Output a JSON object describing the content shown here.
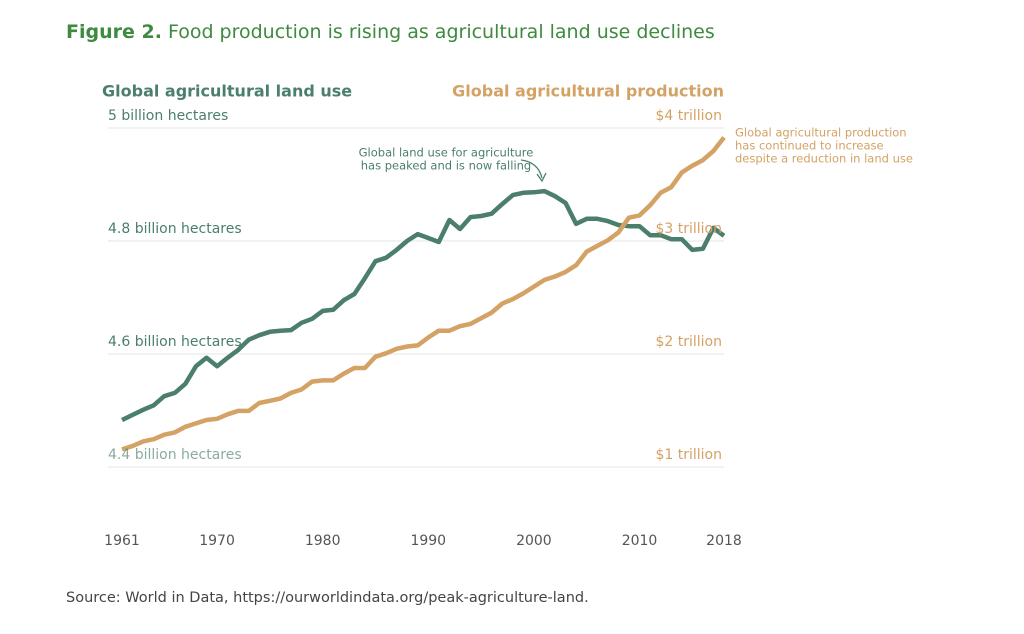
{
  "chart_data": {
    "type": "line",
    "figure_label": "Figure 2.",
    "title": "Food production is rising as agricultural land use declines",
    "y_axis_title": "Global agricultural land use",
    "y2_axis_title": "Global agricultural production",
    "annotations": [
      {
        "lines": [
          "Global land use for agriculture",
          "has peaked and is now falling"
        ]
      },
      {
        "lines": [
          "Global agricultural production",
          "has continued to increase",
          "despite a reduction in land use"
        ]
      }
    ],
    "source": "Source: World in Data, https://ourworldindata.org/peak-agriculture-land.",
    "grid": true,
    "x": [
      1961,
      1962,
      1963,
      1964,
      1965,
      1966,
      1967,
      1968,
      1969,
      1970,
      1971,
      1972,
      1973,
      1974,
      1975,
      1976,
      1977,
      1978,
      1979,
      1980,
      1981,
      1982,
      1983,
      1984,
      1985,
      1986,
      1987,
      1988,
      1989,
      1990,
      1991,
      1992,
      1993,
      1994,
      1995,
      1996,
      1997,
      1998,
      1999,
      2000,
      2001,
      2002,
      2003,
      2004,
      2005,
      2006,
      2007,
      2008,
      2009,
      2010,
      2011,
      2012,
      2013,
      2014,
      2015,
      2016,
      2017,
      2018
    ],
    "xlim": [
      1961,
      2018
    ],
    "xticks": [
      1961,
      1970,
      1980,
      1990,
      2000,
      2010,
      2018
    ],
    "ylim": [
      4.4,
      5.0
    ],
    "yticks": [
      {
        "value": 4.4,
        "label": "4.4 billion hectares"
      },
      {
        "value": 4.6,
        "label": "4.6 billion hectares"
      },
      {
        "value": 4.8,
        "label": "4.8 billion hectares"
      },
      {
        "value": 5.0,
        "label": "5 billion hectares"
      }
    ],
    "y2lim": [
      1,
      4
    ],
    "y2ticks": [
      {
        "value": 1,
        "label": "$1 trillion"
      },
      {
        "value": 2,
        "label": "$2 trillion"
      },
      {
        "value": 3,
        "label": "$3 trillion"
      },
      {
        "value": 4,
        "label": "$4 trillion"
      }
    ],
    "series": [
      {
        "name": "Global agricultural land use",
        "color": "#4b7f6b",
        "axis": "y",
        "values": [
          4.462,
          4.471,
          4.48,
          4.488,
          4.504,
          4.51,
          4.526,
          4.557,
          4.572,
          4.557,
          4.572,
          4.586,
          4.604,
          4.612,
          4.618,
          4.62,
          4.621,
          4.634,
          4.641,
          4.655,
          4.657,
          4.674,
          4.685,
          4.713,
          4.743,
          4.749,
          4.763,
          4.779,
          4.791,
          4.784,
          4.777,
          4.816,
          4.8,
          4.821,
          4.823,
          4.827,
          4.844,
          4.86,
          4.864,
          4.865,
          4.867,
          4.858,
          4.846,
          4.809,
          4.818,
          4.818,
          4.814,
          4.807,
          4.805,
          4.805,
          4.789,
          4.789,
          4.782,
          4.782,
          4.763,
          4.765,
          4.802,
          4.788
        ]
      },
      {
        "name": "Global agricultural production",
        "color": "#d4a264",
        "axis": "y2",
        "values": [
          1.05,
          1.08,
          1.12,
          1.14,
          1.18,
          1.2,
          1.25,
          1.28,
          1.31,
          1.32,
          1.36,
          1.39,
          1.39,
          1.46,
          1.48,
          1.5,
          1.55,
          1.58,
          1.65,
          1.66,
          1.66,
          1.72,
          1.77,
          1.77,
          1.87,
          1.9,
          1.94,
          1.96,
          1.97,
          2.04,
          2.1,
          2.1,
          2.14,
          2.16,
          2.21,
          2.26,
          2.34,
          2.38,
          2.43,
          2.49,
          2.55,
          2.58,
          2.62,
          2.68,
          2.8,
          2.85,
          2.9,
          2.97,
          3.1,
          3.12,
          3.21,
          3.32,
          3.37,
          3.5,
          3.56,
          3.61,
          3.69,
          3.81
        ]
      }
    ]
  }
}
